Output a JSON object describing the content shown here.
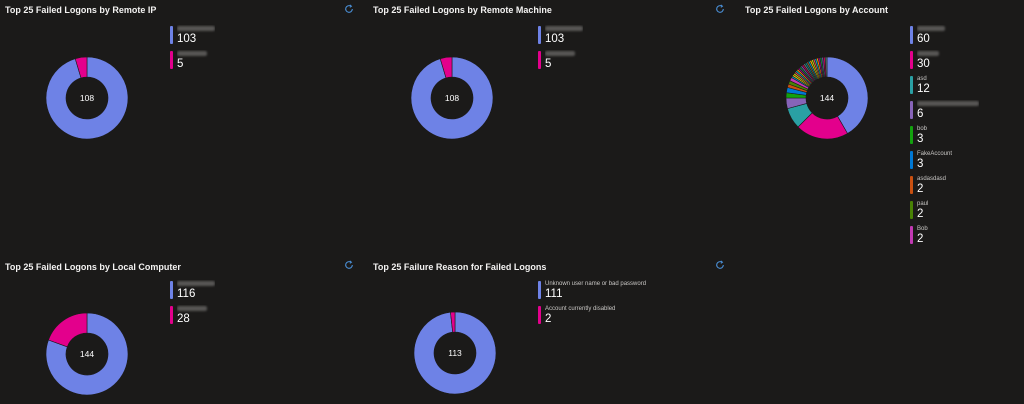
{
  "tiles": [
    {
      "title": "Top 25 Failed Logons by Remote IP",
      "total": "108",
      "legend": [
        {
          "label": "",
          "value": "103",
          "color": "#6e82e6"
        },
        {
          "label": "",
          "value": "5",
          "color": "#e3008c"
        }
      ]
    },
    {
      "title": "Top 25 Failed Logons by Remote Machine",
      "total": "108",
      "legend": [
        {
          "label": "",
          "value": "103",
          "color": "#6e82e6"
        },
        {
          "label": "",
          "value": "5",
          "color": "#e3008c"
        }
      ]
    },
    {
      "title": "Top 25 Failed Logons by Account",
      "total": "144",
      "legend": [
        {
          "label": "",
          "value": "60",
          "color": "#6e82e6"
        },
        {
          "label": "",
          "value": "30",
          "color": "#e3008c"
        },
        {
          "label": "asd",
          "value": "12",
          "color": "#2aa0a4"
        },
        {
          "label": "",
          "value": "6",
          "color": "#8764b8"
        },
        {
          "label": "bob",
          "value": "3",
          "color": "#13a10e"
        },
        {
          "label": "FakeAccount",
          "value": "3",
          "color": "#0078d4"
        },
        {
          "label": "asdasdasd",
          "value": "2",
          "color": "#ca5010"
        },
        {
          "label": "paul",
          "value": "2",
          "color": "#498205"
        },
        {
          "label": "Bob",
          "value": "2",
          "color": "#c239b3"
        }
      ]
    },
    {
      "title": "Top 25 Failed Logons by Local Computer",
      "total": "144",
      "legend": [
        {
          "label": "",
          "value": "116",
          "color": "#6e82e6"
        },
        {
          "label": "",
          "value": "28",
          "color": "#e3008c"
        }
      ]
    },
    {
      "title": "Top 25 Failure Reason for Failed Logons",
      "total": "113",
      "legend": [
        {
          "label": "Unknown user name or bad password",
          "value": "111",
          "color": "#6e82e6"
        },
        {
          "label": "Account currently disabled",
          "value": "2",
          "color": "#e3008c"
        }
      ]
    }
  ],
  "refresh_icon": "refresh-icon",
  "colors": {
    "background": "#1b1a19",
    "primary_slice": "#6e82e6",
    "secondary_slice": "#e3008c",
    "refresh_icon": "#4a8fd6"
  }
}
